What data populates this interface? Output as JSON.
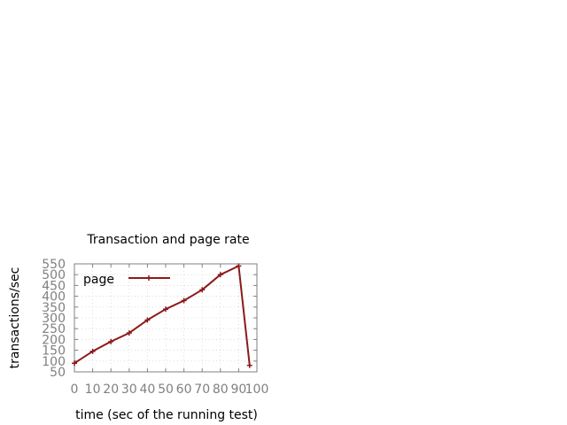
{
  "chart_data": {
    "type": "line",
    "title": "Transaction and page rate",
    "xlabel": "time (sec of the running test)",
    "ylabel": "transactions/sec",
    "xlim": [
      0,
      100
    ],
    "ylim": [
      50,
      550
    ],
    "xticks": [
      0,
      10,
      20,
      30,
      40,
      50,
      60,
      70,
      80,
      90,
      100
    ],
    "xtick_labels": [
      "0",
      "10",
      "20",
      "30",
      "40",
      "50",
      "60",
      "70",
      "80",
      "90",
      "100"
    ],
    "yticks": [
      50,
      100,
      150,
      200,
      250,
      300,
      350,
      400,
      450,
      500,
      550
    ],
    "ytick_labels": [
      "50",
      "100",
      "150",
      "200",
      "250",
      "300",
      "350",
      "400",
      "450",
      "500",
      "550"
    ],
    "grid": true,
    "legend_position": "top-left",
    "series": [
      {
        "name": "page",
        "color": "#8b1a1a",
        "marker": "plus",
        "x": [
          0,
          10,
          20,
          30,
          40,
          50,
          60,
          70,
          80,
          90,
          96
        ],
        "y": [
          90,
          145,
          190,
          230,
          290,
          340,
          380,
          430,
          500,
          540,
          80
        ]
      }
    ]
  }
}
